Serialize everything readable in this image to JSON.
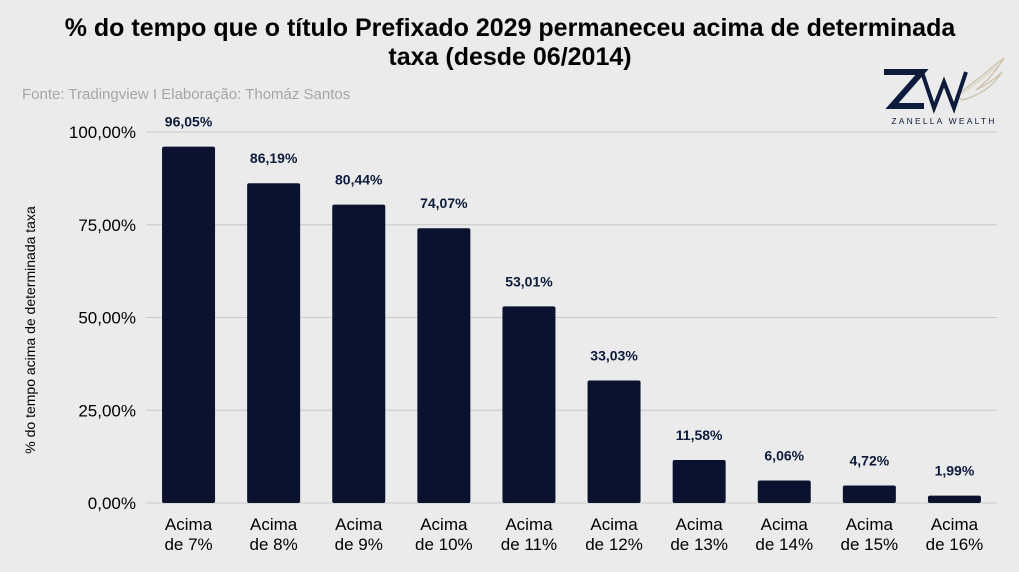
{
  "title": "% do tempo que o título Prefixado 2029 permaneceu acima de determinada taxa (desde 06/2014)",
  "source": "Fonte: Tradingview I Elaboração: Thomáz Santos",
  "logo": {
    "monogram": "ZW",
    "text": "ZANELLA WEALTH"
  },
  "colors": {
    "bar": "#0a1230",
    "background": "#ebebeb",
    "grid": "#c8c8c8",
    "label": "#0d1b3d"
  },
  "chart_data": {
    "type": "bar",
    "title": "% do tempo que o título Prefixado 2029 permaneceu acima de determinada taxa (desde 06/2014)",
    "ylabel": "% do tempo acima de determinada taxa",
    "xlabel": "",
    "ylim": [
      0,
      100
    ],
    "yticks": [
      0,
      25,
      50,
      75,
      100
    ],
    "ytick_labels": [
      "0,00%",
      "25,00%",
      "50,00%",
      "75,00%",
      "100,00%"
    ],
    "grid": true,
    "categories": [
      [
        "Acima",
        "de 7%"
      ],
      [
        "Acima",
        "de 8%"
      ],
      [
        "Acima",
        "de 9%"
      ],
      [
        "Acima",
        "de 10%"
      ],
      [
        "Acima",
        "de 11%"
      ],
      [
        "Acima",
        "de 12%"
      ],
      [
        "Acima",
        "de 13%"
      ],
      [
        "Acima",
        "de 14%"
      ],
      [
        "Acima",
        "de 15%"
      ],
      [
        "Acima",
        "de 16%"
      ]
    ],
    "values": [
      96.05,
      86.19,
      80.44,
      74.07,
      53.01,
      33.03,
      11.58,
      6.06,
      4.72,
      1.99
    ],
    "value_labels": [
      "96,05%",
      "86,19%",
      "80,44%",
      "74,07%",
      "53,01%",
      "33,03%",
      "11,58%",
      "6,06%",
      "4,72%",
      "1,99%"
    ]
  }
}
